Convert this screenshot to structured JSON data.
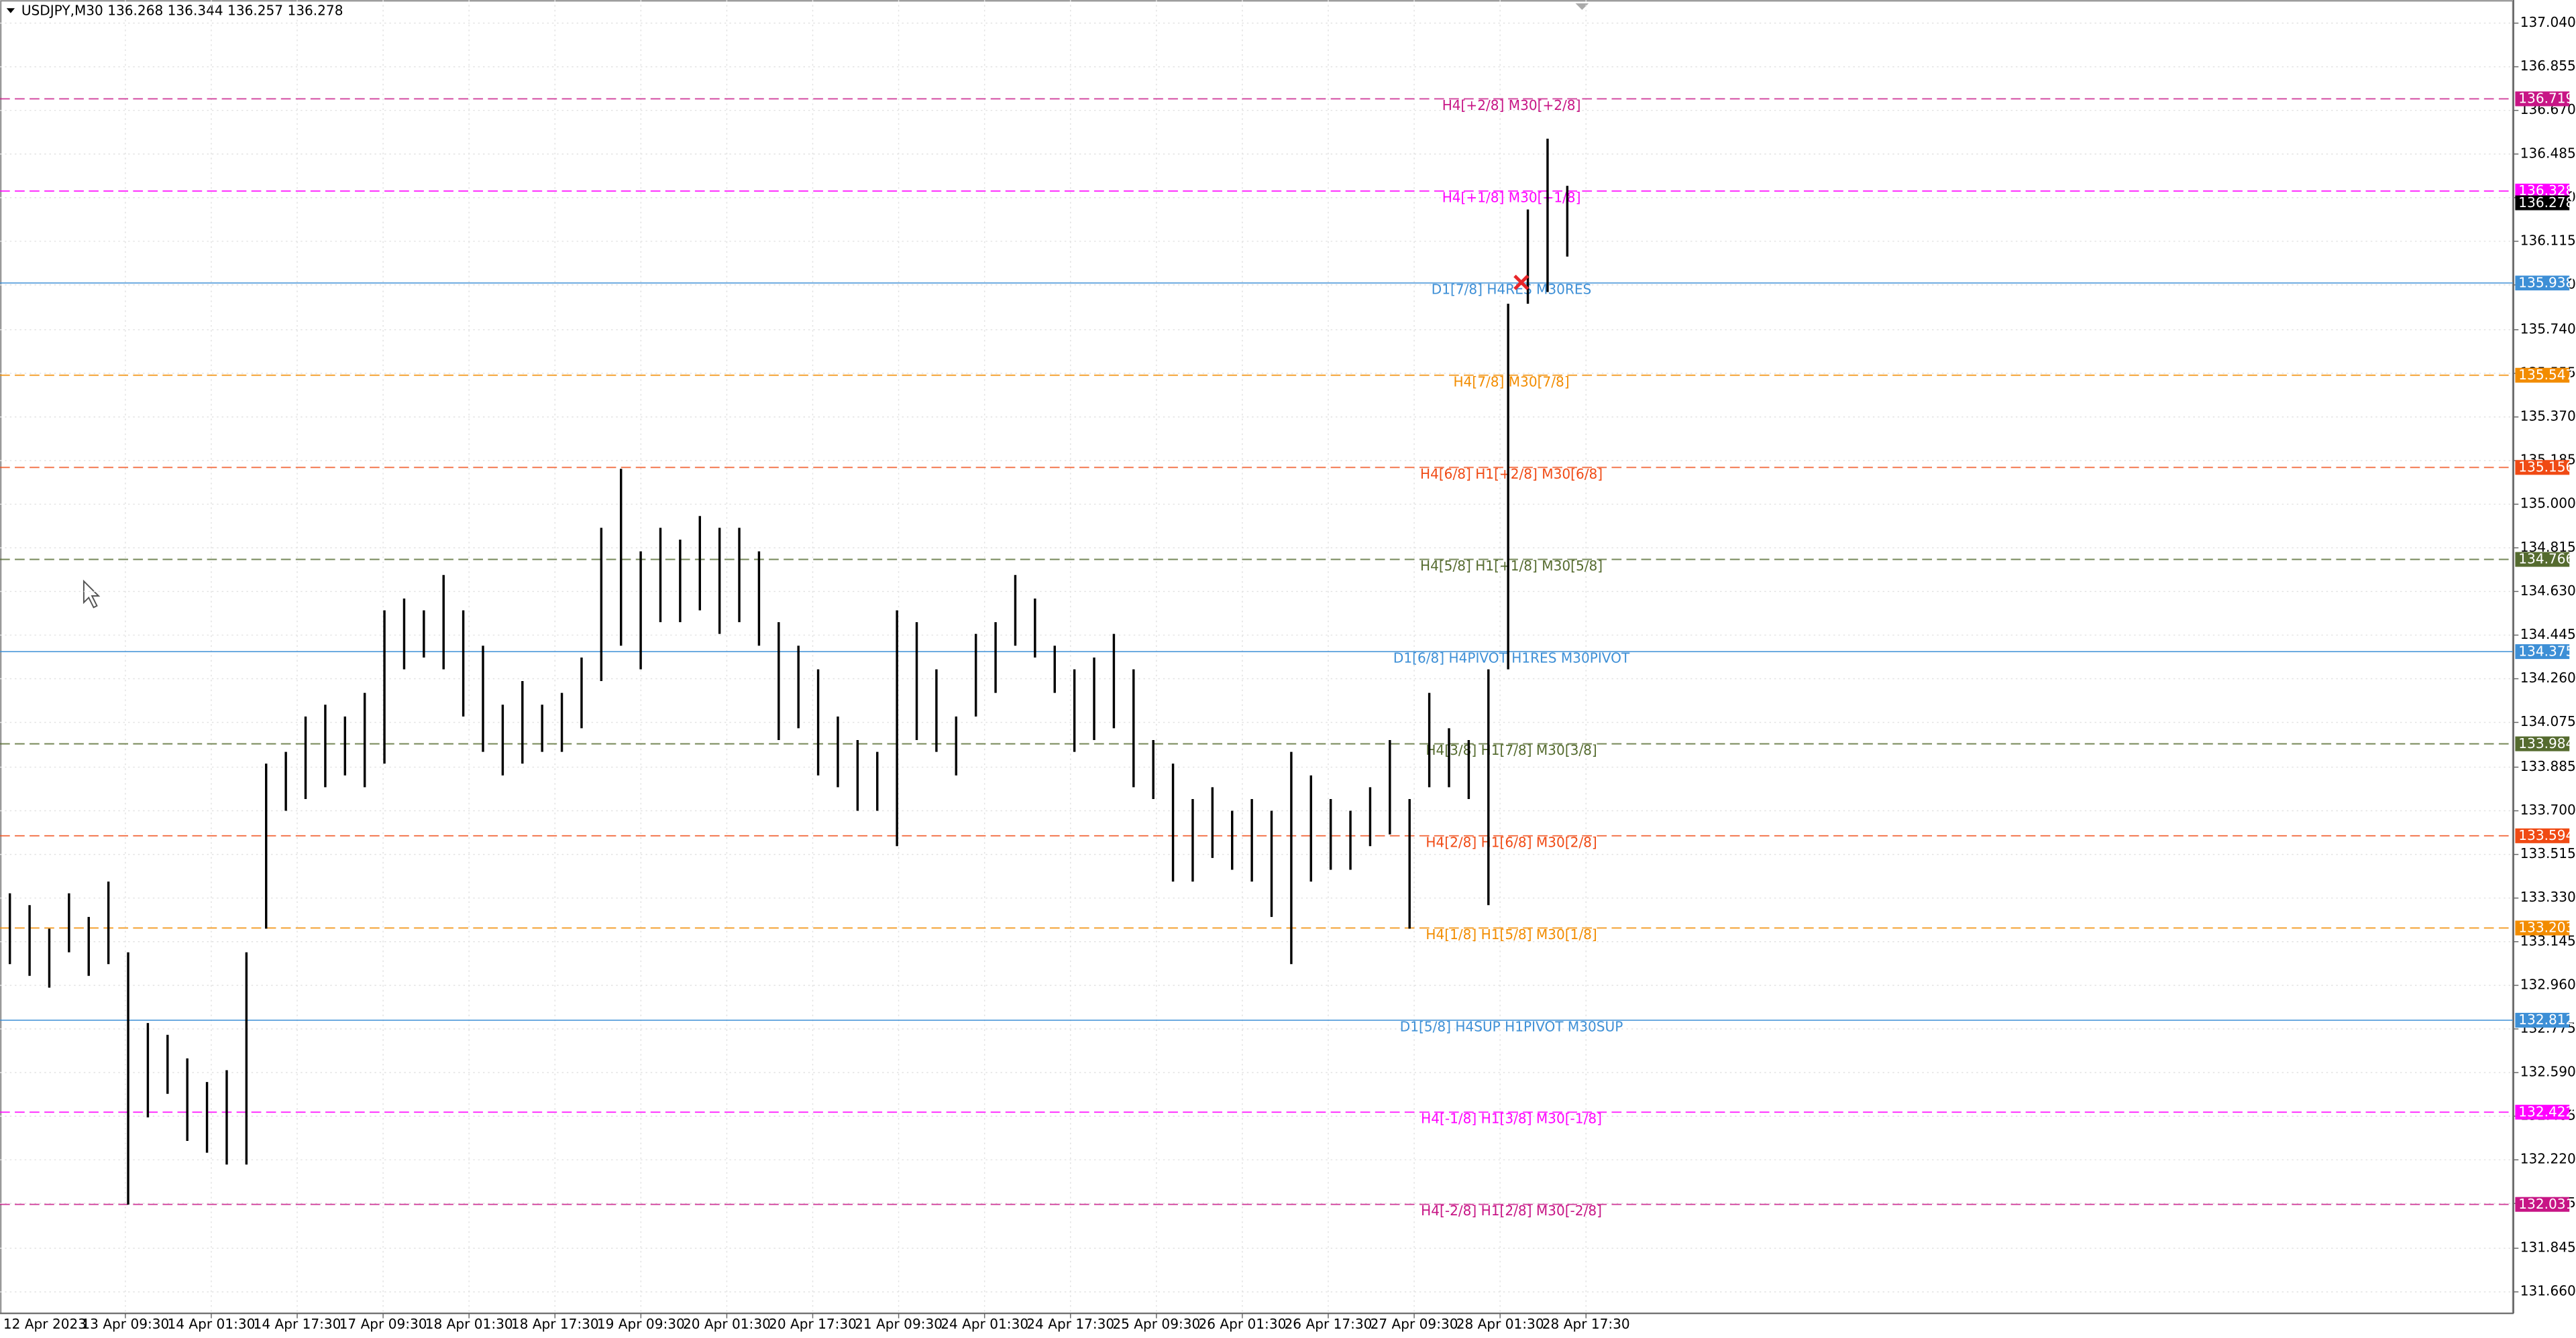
{
  "chart_data": {
    "type": "range-bar",
    "title": "USDJPY,M30  136.268 136.344 136.257 136.278",
    "categories": [
      "12 Apr 2023",
      "13 Apr 09:30",
      "14 Apr 01:30",
      "14 Apr 17:30",
      "17 Apr 09:30",
      "18 Apr 01:30",
      "18 Apr 17:30",
      "19 Apr 09:30",
      "20 Apr 01:30",
      "20 Apr 17:30",
      "21 Apr 09:30",
      "24 Apr 01:30",
      "24 Apr 17:30",
      "25 Apr 09:30",
      "26 Apr 01:30",
      "26 Apr 17:30",
      "27 Apr 09:30",
      "28 Apr 01:30",
      "28 Apr 17:30"
    ],
    "color": "#000000",
    "high": [
      133.35,
      133.3,
      133.2,
      133.35,
      133.25,
      133.4,
      133.1,
      132.8,
      132.75,
      132.65,
      132.55,
      132.6,
      133.1,
      133.9,
      133.95,
      134.1,
      134.15,
      134.1,
      134.2,
      134.55,
      134.6,
      134.55,
      134.7,
      134.55,
      134.4,
      134.15,
      134.25,
      134.15,
      134.2,
      134.35,
      134.9,
      135.15,
      134.8,
      134.9,
      134.85,
      134.95,
      134.9,
      134.9,
      134.8,
      134.5,
      134.4,
      134.3,
      134.1,
      134.0,
      133.95,
      134.55,
      134.5,
      134.3,
      134.1,
      134.45,
      134.5,
      134.7,
      134.6,
      134.4,
      134.3,
      134.35,
      134.45,
      134.3,
      134.0,
      133.9,
      133.75,
      133.8,
      133.7,
      133.75,
      133.7,
      133.95,
      133.85,
      133.75,
      133.7,
      133.8,
      134.0,
      133.75,
      134.2,
      134.05,
      134.0,
      134.3,
      135.85,
      136.25,
      136.55,
      136.35
    ],
    "low": [
      133.05,
      133.0,
      132.95,
      133.1,
      133.0,
      133.05,
      132.03,
      132.4,
      132.5,
      132.3,
      132.25,
      132.2,
      132.2,
      133.2,
      133.7,
      133.75,
      133.8,
      133.85,
      133.8,
      133.9,
      134.3,
      134.35,
      134.3,
      134.1,
      133.95,
      133.85,
      133.9,
      133.95,
      133.95,
      134.05,
      134.25,
      134.4,
      134.3,
      134.5,
      134.5,
      134.55,
      134.45,
      134.5,
      134.4,
      134.0,
      134.05,
      133.85,
      133.8,
      133.7,
      133.7,
      133.55,
      134.0,
      133.95,
      133.85,
      134.1,
      134.2,
      134.4,
      134.35,
      134.2,
      133.95,
      134.0,
      134.05,
      133.8,
      133.75,
      133.4,
      133.4,
      133.5,
      133.45,
      133.4,
      133.25,
      133.05,
      133.4,
      133.45,
      133.45,
      133.55,
      133.6,
      133.2,
      133.8,
      133.8,
      133.75,
      133.3,
      134.3,
      135.85,
      135.9,
      136.05
    ],
    "ylim": [
      131.569,
      137.138
    ],
    "yticks": [
      {
        "value": 137.04,
        "label": "137.040"
      },
      136.855,
      {
        "value": 136.67,
        "label": "136.670"
      },
      136.485,
      {
        "value": 136.3,
        "label": "136.300"
      },
      136.115,
      {
        "value": 135.93,
        "label": "135.930"
      },
      {
        "value": 135.74,
        "label": "135.740"
      },
      135.555,
      {
        "value": 135.37,
        "label": "135.370"
      },
      135.185,
      {
        "value": 135,
        "label": "135.000"
      },
      134.815,
      {
        "value": 134.63,
        "label": "134.630"
      },
      134.445,
      {
        "value": 134.26,
        "label": "134.260"
      },
      134.075,
      133.885,
      {
        "value": 133.7,
        "label": "133.700"
      },
      133.515,
      {
        "value": 133.33,
        "label": "133.330"
      },
      133.145,
      {
        "value": 132.96,
        "label": "132.960"
      },
      132.775,
      {
        "value": 132.59,
        "label": "132.590"
      },
      132.405,
      {
        "value": 132.22,
        "label": "132.220"
      },
      132.035,
      131.845,
      {
        "value": 131.66,
        "label": "131.660"
      }
    ],
    "grid": true,
    "levels": [
      {
        "label": "H4[+2/8] M30[+2/8]",
        "value": 136.719,
        "color": "#c71585",
        "style": "dashed"
      },
      {
        "label": "H4[+1/8] M30[+1/8]",
        "value": 136.328,
        "color": "#ff00ff",
        "style": "dashed"
      },
      {
        "label": "D1[7/8] H4RES M30RES",
        "value": 135.938,
        "color": "#3d8fd6",
        "style": "solid"
      },
      {
        "label": "H4[7/8] M30[7/8]",
        "value": 135.547,
        "color": "#f28c00",
        "style": "dashed"
      },
      {
        "label": "H4[6/8] H1[+2/8] M30[6/8]",
        "value": 135.156,
        "color": "#f04a14",
        "style": "dashed"
      },
      {
        "label": "H4[5/8] H1[+1/8] M30[5/8]",
        "value": 134.766,
        "color": "#556b2f",
        "style": "dashed"
      },
      {
        "label": "D1[6/8] H4PIVOT H1RES M30PIVOT",
        "value": 134.375,
        "color": "#3d8fd6",
        "style": "solid"
      },
      {
        "label": "H4[3/8] H1[7/8] M30[3/8]",
        "value": 133.984,
        "color": "#556b2f",
        "style": "dashed"
      },
      {
        "label": "H4[2/8] H1[6/8] M30[2/8]",
        "value": 133.594,
        "color": "#f04a14",
        "style": "dashed"
      },
      {
        "label": "H4[1/8] H1[5/8] M30[1/8]",
        "value": 133.203,
        "color": "#f28c00",
        "style": "dashed"
      },
      {
        "label": "D1[5/8] H4SUP H1PIVOT M30SUP",
        "value": 132.812,
        "color": "#3d8fd6",
        "style": "solid"
      },
      {
        "label": "H4[-1/8] H1[3/8] M30[-1/8]",
        "value": 132.422,
        "color": "#ff00ff",
        "style": "dashed"
      },
      {
        "label": "H4[-2/8] H1[2/8] M30[-2/8]",
        "value": 132.031,
        "color": "#c71585",
        "style": "dashed"
      }
    ],
    "current_price": 136.278
  }
}
